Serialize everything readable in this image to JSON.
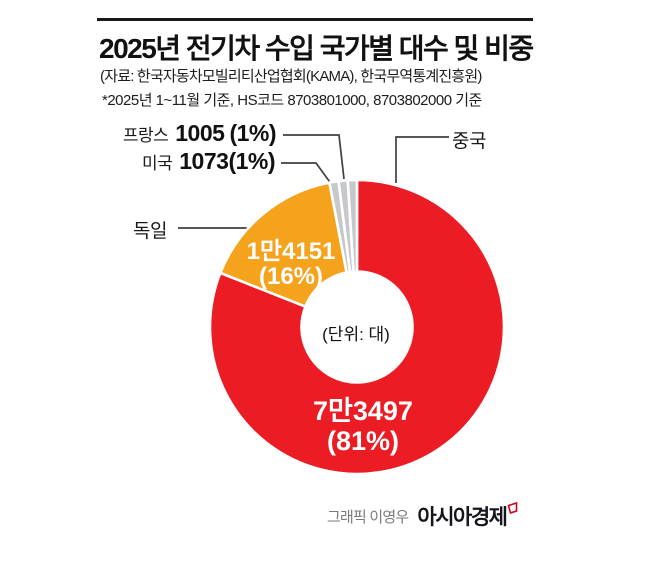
{
  "header": {
    "title": "2025년 전기차 수입 국가별 대수 및 비중",
    "source": "(자료: 한국자동차모빌리티산업협회(KAMA), 한국무역통계진흥원)",
    "basis": "*2025년 1~11월 기준, HS코드 8703801000, 8703802000 기준"
  },
  "chart_data": {
    "type": "pie",
    "variant": "donut",
    "title": "2025년 전기차 수입 국가별 대수 및 비중",
    "unit_note": "(단위: 대)",
    "direction": "clockwise",
    "start_angle_deg": 0,
    "legend_position": "callout-labels",
    "slices": [
      {
        "label": "중국",
        "value": 73497,
        "value_text": "7만3497",
        "pct": 81,
        "pct_text": "(81%)",
        "color": "#EC1C24"
      },
      {
        "label": "독일",
        "value": 14151,
        "value_text": "1만4151",
        "pct": 16,
        "pct_text": "(16%)",
        "color": "#F5A21C"
      },
      {
        "label": "미국",
        "value": 1073,
        "value_text": "1073",
        "pct": 1,
        "pct_text": "(1%)",
        "color": "#C7C8CA"
      },
      {
        "label": "프랑스",
        "value": 1005,
        "value_text": "1005",
        "pct": 1,
        "pct_text": "(1%)",
        "color": "#C7C8CA"
      },
      {
        "label": "",
        "pct": 1,
        "pct_text": "",
        "color": "#C7C8CA"
      }
    ],
    "colors": {
      "china": "#EC1C24",
      "germany": "#F5A21C",
      "minor_gray": "#C7C8CA"
    }
  },
  "credit": {
    "prefix": "그래픽 이영우",
    "brand": "아시아경제"
  }
}
